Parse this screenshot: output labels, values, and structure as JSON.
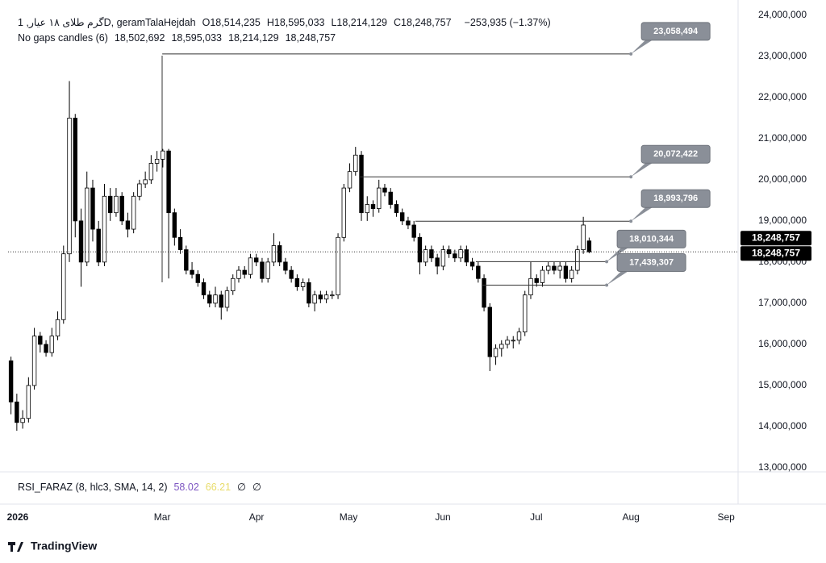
{
  "header": {
    "title": "گرم طلای ۱۸ عیار, 1D, geramTalaHejdah",
    "ohlc": [
      {
        "key": "O",
        "value": "18,514,235"
      },
      {
        "key": "H",
        "value": "18,595,033"
      },
      {
        "key": "L",
        "value": "18,214,129"
      },
      {
        "key": "C",
        "value": "18,248,757"
      }
    ],
    "change": "−253,935 (−1.37%)",
    "study": "No gaps candles (6)",
    "study_values": [
      "18,502,692",
      "18,595,033",
      "18,214,129",
      "18,248,757"
    ]
  },
  "chart_data": {
    "type": "candlestick",
    "x": [
      1,
      3,
      5,
      7,
      9,
      11,
      13,
      15,
      17,
      19,
      21,
      23,
      25,
      27,
      29,
      31,
      33,
      35,
      37,
      39,
      41,
      43,
      45,
      47,
      49,
      51,
      53,
      55,
      57,
      59,
      61,
      63,
      65,
      67,
      69,
      71,
      73,
      75,
      77,
      79,
      81,
      83,
      85,
      87,
      89,
      91,
      93,
      95,
      97,
      99,
      101,
      103,
      105,
      107,
      109,
      111,
      113,
      115,
      117,
      119,
      121,
      123,
      125,
      127,
      129,
      131,
      133,
      135,
      137,
      139,
      141,
      143,
      145,
      147,
      149,
      151,
      153,
      155,
      157,
      159,
      161,
      163,
      165,
      167,
      169,
      171,
      173,
      175,
      177,
      179,
      181,
      183,
      185,
      187,
      189,
      191,
      193,
      195,
      197,
      199
    ],
    "open": [
      15600000,
      14600000,
      14100000,
      14200000,
      15000000,
      16200000,
      16000000,
      15800000,
      16200000,
      16600000,
      18200000,
      21500000,
      19000000,
      18000000,
      19800000,
      18800000,
      18000000,
      19600000,
      19200000,
      19600000,
      19000000,
      18800000,
      19600000,
      19900000,
      20000000,
      20400000,
      20500000,
      20700000,
      19200000,
      18600000,
      18300000,
      17800000,
      17700000,
      17500000,
      17200000,
      17000000,
      17200000,
      16900000,
      17300000,
      17600000,
      17800000,
      17700000,
      18100000,
      18000000,
      17600000,
      18000000,
      18400000,
      18000000,
      17800000,
      17600000,
      17400000,
      17500000,
      17000000,
      17200000,
      17100000,
      17200000,
      17200000,
      18600000,
      19800000,
      20200000,
      20600000,
      19200000,
      19400000,
      19300000,
      19800000,
      19700000,
      19400000,
      19200000,
      19000000,
      18900000,
      18600000,
      18000000,
      18300000,
      18100000,
      17900000,
      18300000,
      18200000,
      18100000,
      18300000,
      18000000,
      17900000,
      17600000,
      16900000,
      15700000,
      15900000,
      16000000,
      16100000,
      16100000,
      16300000,
      17200000,
      17600000,
      17500000,
      17800000,
      17900000,
      17800000,
      17900000,
      17600000,
      17800000,
      18300000,
      18514235
    ],
    "high": [
      15700000,
      14800000,
      14400000,
      15200000,
      16400000,
      16300000,
      16100000,
      16400000,
      16800000,
      18400000,
      22400000,
      21600000,
      19300000,
      20200000,
      20000000,
      19000000,
      19900000,
      19800000,
      19800000,
      19700000,
      19200000,
      19700000,
      20000000,
      20200000,
      20600000,
      20700000,
      20750000,
      20750000,
      19300000,
      18800000,
      18400000,
      18000000,
      17800000,
      17600000,
      17300000,
      17400000,
      17300000,
      17400000,
      17700000,
      17900000,
      17900000,
      18200000,
      18200000,
      18100000,
      18100000,
      18700000,
      18500000,
      18100000,
      17900000,
      17700000,
      17600000,
      17600000,
      17300000,
      17300000,
      17300000,
      17300000,
      18700000,
      19900000,
      20400000,
      20800000,
      20700000,
      19600000,
      19500000,
      20000000,
      19900000,
      19800000,
      19500000,
      19300000,
      19100000,
      19000000,
      18700000,
      18400000,
      18400000,
      18200000,
      18400000,
      18400000,
      18300000,
      18400000,
      18400000,
      18100000,
      18000000,
      17700000,
      17000000,
      16000000,
      16100000,
      16200000,
      16200000,
      16400000,
      17300000,
      18000000,
      17700000,
      17900000,
      18000000,
      18000000,
      18000000,
      18000000,
      17900000,
      18400000,
      19100000,
      18595033
    ],
    "low": [
      14300000,
      13900000,
      13950000,
      14100000,
      14900000,
      15800000,
      15700000,
      15700000,
      16100000,
      16500000,
      18000000,
      18600000,
      17400000,
      17900000,
      18500000,
      17900000,
      17900000,
      19000000,
      19100000,
      18900000,
      18600000,
      18700000,
      19500000,
      19800000,
      19900000,
      20200000,
      20300000,
      17600000,
      18400000,
      18200000,
      17700000,
      17600000,
      17400000,
      17100000,
      16900000,
      16900000,
      16600000,
      16800000,
      17200000,
      17500000,
      17600000,
      17600000,
      17900000,
      17500000,
      17500000,
      17900000,
      17900000,
      17700000,
      17500000,
      17300000,
      17300000,
      16900000,
      16800000,
      17000000,
      17000000,
      17100000,
      17100000,
      18500000,
      19700000,
      20100000,
      19000000,
      19000000,
      19100000,
      19200000,
      19600000,
      19300000,
      19100000,
      18900000,
      18800000,
      18500000,
      17700000,
      17900000,
      18000000,
      17700000,
      17800000,
      18100000,
      18000000,
      18000000,
      17900000,
      17800000,
      17500000,
      16800000,
      15350000,
      15500000,
      15700000,
      15900000,
      15900000,
      16000000,
      16200000,
      17100000,
      17400000,
      17400000,
      17700000,
      17700000,
      17600000,
      17500000,
      17500000,
      17700000,
      18200000,
      18214129
    ],
    "close": [
      14600000,
      14100000,
      14200000,
      15000000,
      16200000,
      16000000,
      15800000,
      16200000,
      16600000,
      18200000,
      21500000,
      19000000,
      18000000,
      19800000,
      18800000,
      18000000,
      19600000,
      19200000,
      19600000,
      19000000,
      18800000,
      19600000,
      19900000,
      20000000,
      20400000,
      20500000,
      20700000,
      19200000,
      18600000,
      18300000,
      17800000,
      17700000,
      17500000,
      17200000,
      17000000,
      17200000,
      16900000,
      17300000,
      17600000,
      17800000,
      17700000,
      18100000,
      18000000,
      17600000,
      18000000,
      18400000,
      18000000,
      17800000,
      17600000,
      17400000,
      17500000,
      17000000,
      17200000,
      17100000,
      17200000,
      17200000,
      18600000,
      19800000,
      20200000,
      20600000,
      19200000,
      19400000,
      19300000,
      19800000,
      19700000,
      19400000,
      19200000,
      19000000,
      18900000,
      18600000,
      18000000,
      18300000,
      18100000,
      17900000,
      18300000,
      18200000,
      18100000,
      18300000,
      18000000,
      17900000,
      17600000,
      16900000,
      15700000,
      15900000,
      16000000,
      16100000,
      16100000,
      16300000,
      17200000,
      17600000,
      17500000,
      17800000,
      17900000,
      17800000,
      17900000,
      17600000,
      17800000,
      18300000,
      18900000,
      18248757
    ],
    "up_color": "#ffffff",
    "down_color": "#000000",
    "outline_color": "#000000",
    "xlim": [
      0,
      250
    ],
    "xticks": [
      {
        "value": 3.3,
        "label": "2026"
      },
      {
        "value": 52.8,
        "label": "Mar"
      },
      {
        "value": 85.1,
        "label": "Apr"
      },
      {
        "value": 116.6,
        "label": "May"
      },
      {
        "value": 148.9,
        "label": "Jun"
      },
      {
        "value": 180.9,
        "label": "Jul"
      },
      {
        "value": 213.3,
        "label": "Aug"
      },
      {
        "value": 245.9,
        "label": "Sep"
      }
    ],
    "ylim": [
      12900000,
      24370000
    ],
    "yticks": [
      {
        "value": 13000000,
        "label": "13,000,000"
      },
      {
        "value": 14000000,
        "label": "14,000,000"
      },
      {
        "value": 15000000,
        "label": "15,000,000"
      },
      {
        "value": 16000000,
        "label": "16,000,000"
      },
      {
        "value": 17000000,
        "label": "17,000,000"
      },
      {
        "value": 18000000,
        "label": "18,000,000"
      },
      {
        "value": 19000000,
        "label": "19,000,000"
      },
      {
        "value": 20000000,
        "label": "20,000,000"
      },
      {
        "value": 21000000,
        "label": "21,000,000"
      },
      {
        "value": 22000000,
        "label": "22,000,000"
      },
      {
        "value": 23000000,
        "label": "23,000,000"
      },
      {
        "value": 24000000,
        "label": "24,000,000"
      }
    ],
    "grid": false,
    "last_price": 18248757,
    "last_price_label": "18,248,757",
    "levels": [
      {
        "value": 23058494,
        "label": "23,058,494",
        "x": [
          52.8,
          213.3
        ]
      },
      {
        "value": 20072422,
        "label": "20,072,422",
        "x": [
          120.2,
          213.3
        ]
      },
      {
        "value": 18993796,
        "label": "18,993,796",
        "x": [
          139.5,
          213.3
        ]
      },
      {
        "value": 18010344,
        "label": "18,010,344",
        "x": [
          160.2,
          205
        ]
      },
      {
        "value": 17439307,
        "label": "17,439,307",
        "x": [
          162.2,
          205
        ]
      }
    ]
  },
  "indicator": {
    "name": "RSI_FARAZ (8, hlc3, SMA, 14, 2)",
    "values": [
      {
        "text": "58.02",
        "color": "#7e57c2"
      },
      {
        "text": "66.21",
        "color": "#e8dc6a"
      },
      {
        "text": "∅",
        "color": "#131722"
      },
      {
        "text": "∅",
        "color": "#131722"
      }
    ]
  },
  "footer": {
    "brand": "TradingView"
  }
}
